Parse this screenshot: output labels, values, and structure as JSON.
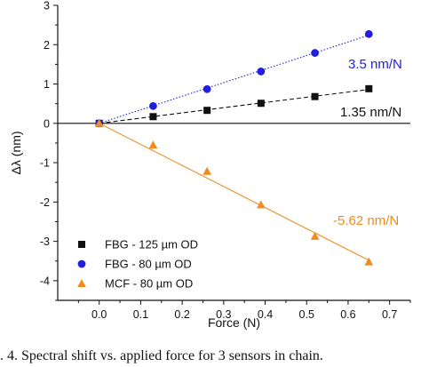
{
  "caption": ". 4.    Spectral shift vs. applied force for 3 sensors in chain.",
  "colors": {
    "fbg125": "#111111",
    "fbg80": "#1f1fdc",
    "mcf80": "#f08c1e",
    "axis": "#111111"
  },
  "chart_data": {
    "type": "scatter",
    "xlabel": "Force (N)",
    "ylabel": "Δλ (nm)",
    "xlim": [
      -0.1,
      0.75
    ],
    "ylim": [
      -4.5,
      3
    ],
    "xticks": [
      "0.0",
      "0.1",
      "0.2",
      "0.3",
      "0.4",
      "0.5",
      "0.6",
      "0.7"
    ],
    "yticks": [
      "3",
      "2",
      "1",
      "0",
      "-1",
      "-2",
      "-3",
      "-4"
    ],
    "legend_position": "bottom-left",
    "series": [
      {
        "name": "FBG - 125 µm OD",
        "marker": "square",
        "color": "#111111",
        "fit_style": "dashed",
        "fit_label": "1.35 nm/N",
        "x": [
          0.0,
          0.13,
          0.26,
          0.39,
          0.52,
          0.65
        ],
        "y": [
          0.0,
          0.17,
          0.33,
          0.51,
          0.68,
          0.88
        ]
      },
      {
        "name": "FBG - 80 µm OD",
        "marker": "circle",
        "color": "#1f1fdc",
        "fit_style": "dotted",
        "fit_label": "3.5 nm/N",
        "x": [
          0.0,
          0.13,
          0.26,
          0.39,
          0.52,
          0.65
        ],
        "y": [
          0.0,
          0.44,
          0.87,
          1.32,
          1.79,
          2.27
        ]
      },
      {
        "name": "MCF - 80 µm OD",
        "marker": "triangle",
        "color": "#f08c1e",
        "fit_style": "solid",
        "fit_label": "-5.62 nm/N",
        "x": [
          0.0,
          0.13,
          0.26,
          0.39,
          0.52,
          0.65
        ],
        "y": [
          0.0,
          -0.55,
          -1.22,
          -2.07,
          -2.87,
          -3.52
        ]
      }
    ]
  }
}
